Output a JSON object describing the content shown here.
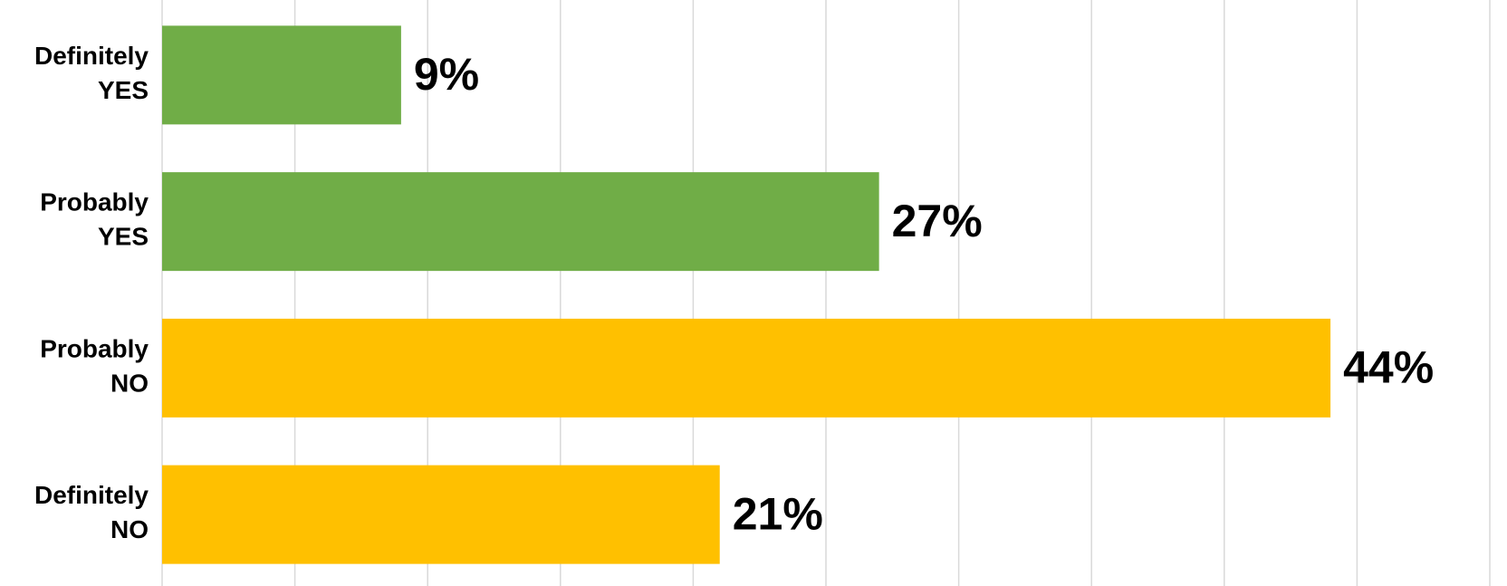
{
  "chart_data": {
    "type": "barh",
    "categories": [
      "Definitely YES",
      "Probably YES",
      "Probably NO",
      "Definitely NO"
    ],
    "values": [
      9,
      27,
      44,
      21
    ],
    "value_labels": [
      "9%",
      "27%",
      "44%",
      "21%"
    ],
    "colors": [
      "#70ad47",
      "#70ad47",
      "#ffc000",
      "#ffc000"
    ],
    "xlim": [
      0,
      50
    ],
    "xticks": [
      0,
      5,
      10,
      15,
      20,
      25,
      30,
      35,
      40,
      45,
      50
    ],
    "grid": true
  }
}
